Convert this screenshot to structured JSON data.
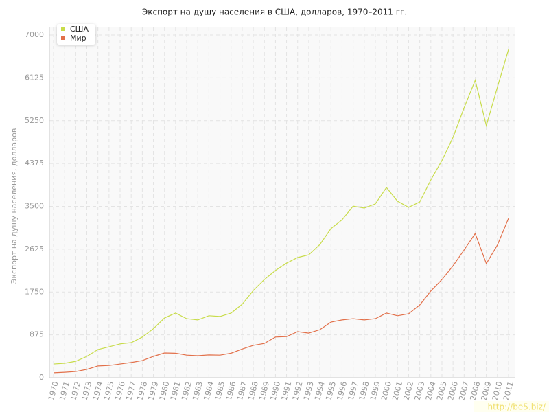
{
  "chart_data": {
    "type": "line",
    "title": "Экспорт на душу населения в США, долларов, 1970–2011 гг.",
    "y_label": "Экспорт на душу населения, долларов",
    "watermark": "http://be5.biz/",
    "categories": [
      "1970",
      "1971",
      "1972",
      "1973",
      "1974",
      "1975",
      "1976",
      "1977",
      "1978",
      "1979",
      "1980",
      "1981",
      "1982",
      "1983",
      "1984",
      "1985",
      "1986",
      "1987",
      "1988",
      "1989",
      "1990",
      "1991",
      "1992",
      "1993",
      "1994",
      "1995",
      "1996",
      "1997",
      "1998",
      "1999",
      "2000",
      "2001",
      "2002",
      "2003",
      "2004",
      "2005",
      "2006",
      "2007",
      "2008",
      "2009",
      "2010",
      "2011"
    ],
    "series": [
      {
        "name": "США",
        "color": "#c8dc4a",
        "values": [
          280,
          295,
          335,
          435,
          575,
          630,
          690,
          715,
          830,
          1000,
          1220,
          1320,
          1205,
          1180,
          1265,
          1250,
          1320,
          1500,
          1780,
          2005,
          2190,
          2340,
          2455,
          2510,
          2720,
          3045,
          3225,
          3505,
          3465,
          3550,
          3885,
          3605,
          3480,
          3590,
          4040,
          4435,
          4910,
          5515,
          6075,
          5150,
          5935,
          6705
        ]
      },
      {
        "name": "Мир",
        "color": "#e2704a",
        "values": [
          100,
          110,
          125,
          170,
          240,
          250,
          280,
          310,
          350,
          435,
          505,
          500,
          460,
          450,
          465,
          460,
          500,
          585,
          660,
          700,
          830,
          840,
          940,
          910,
          980,
          1135,
          1180,
          1205,
          1180,
          1205,
          1320,
          1265,
          1305,
          1485,
          1770,
          2005,
          2285,
          2610,
          2945,
          2330,
          2710,
          3255
        ]
      }
    ],
    "ylim": [
      0,
      7000
    ],
    "yticks": [
      0,
      875,
      1750,
      2625,
      3500,
      4375,
      5250,
      6125,
      7000
    ],
    "grid": true,
    "legend": "top-left"
  }
}
